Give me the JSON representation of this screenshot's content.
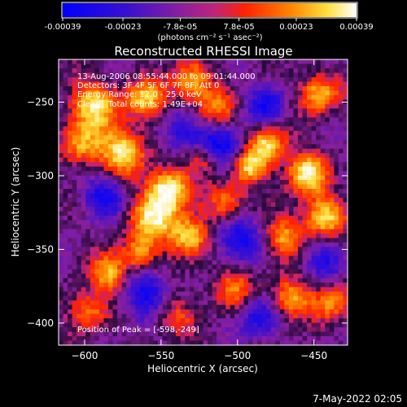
{
  "colorbar": {
    "tick_labels": [
      "-0.00039",
      "-0.00023",
      "-7.8e-05",
      "7.8e-05",
      "0.00023",
      "0.00039"
    ],
    "tick_values": [
      -0.00039,
      -0.00023,
      -7.8e-05,
      7.8e-05,
      0.00023,
      0.00039
    ],
    "range": [
      -0.00039,
      0.00039
    ],
    "units_label": "(photons cm⁻² s⁻¹ asec⁻²)",
    "colors": [
      "#0000ff",
      "#6a1fb0",
      "#c0247a",
      "#ff2200",
      "#ff8800",
      "#ffee55",
      "#ffffff"
    ]
  },
  "chart_data": {
    "type": "heatmap",
    "title": "Reconstructed RHESSI Image",
    "xlabel": "Heliocentric X (arcsec)",
    "ylabel": "Heliocentric Y (arcsec)",
    "xlim": [
      -617,
      -428
    ],
    "ylim": [
      -415,
      -221
    ],
    "x_ticks": [
      -600,
      -550,
      -500,
      -450
    ],
    "y_ticks": [
      -250,
      -300,
      -350,
      -400
    ],
    "x_tick_labels": [
      "−600",
      "−550",
      "−500",
      "−450"
    ],
    "y_tick_labels": [
      "−250",
      "−300",
      "−350",
      "−400"
    ],
    "annotations": [
      "13-Aug-2006 08:55:44.000 to 09:01:44.000",
      "Detectors: 3F 4F 5F 6F 7F 8F, Att 0",
      "Energy Range: 12.0 - 25.0 keV",
      "Clean   Total counts: 1.49E+04"
    ],
    "peak_label": "Position of Peak = [-598,-249]",
    "peak_position": [
      -598,
      -249
    ],
    "grid": false,
    "colormap": "RHESSI flux, blue-purple-red-yellow-white"
  },
  "footer": {
    "timestamp": "7-May-2022 02:05"
  }
}
